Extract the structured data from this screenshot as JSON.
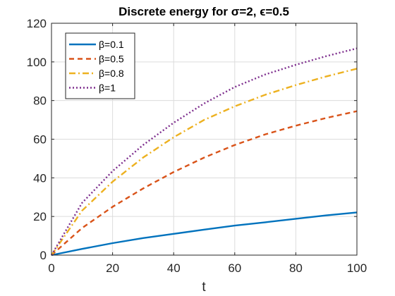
{
  "chart_data": {
    "type": "line",
    "title": "Discrete energy for σ=2, ϵ=0.5",
    "xlabel": "t",
    "ylabel": "",
    "xlim": [
      0,
      100
    ],
    "ylim": [
      0,
      120
    ],
    "xticks": [
      "0",
      "20",
      "40",
      "60",
      "80",
      "100"
    ],
    "yticks": [
      "0",
      "20",
      "40",
      "60",
      "80",
      "100",
      "120"
    ],
    "grid": true,
    "legend_position": "top-left",
    "x": [
      0,
      10,
      20,
      30,
      40,
      50,
      60,
      70,
      80,
      90,
      100
    ],
    "series": [
      {
        "name": "β=0.1",
        "color": "#0072BD",
        "dash": "solid",
        "values": [
          0,
          3.2,
          6.2,
          8.8,
          11.0,
          13.2,
          15.3,
          17.0,
          18.8,
          20.6,
          22.1
        ]
      },
      {
        "name": "β=0.5",
        "color": "#D95319",
        "dash": "dashed",
        "values": [
          0,
          14.0,
          25.0,
          34.5,
          43.0,
          50.5,
          57.0,
          62.5,
          67.0,
          71.0,
          74.5
        ]
      },
      {
        "name": "β=0.8",
        "color": "#EDB120",
        "dash": "dashdot",
        "values": [
          0,
          23.0,
          38.0,
          50.5,
          61.0,
          70.0,
          77.0,
          83.0,
          88.0,
          92.5,
          96.5
        ]
      },
      {
        "name": "β=1",
        "color": "#7E2F8E",
        "dash": "dotted",
        "values": [
          0,
          27.0,
          43.5,
          57.0,
          68.5,
          78.5,
          87.0,
          93.5,
          98.5,
          103.0,
          107.0
        ]
      }
    ]
  }
}
